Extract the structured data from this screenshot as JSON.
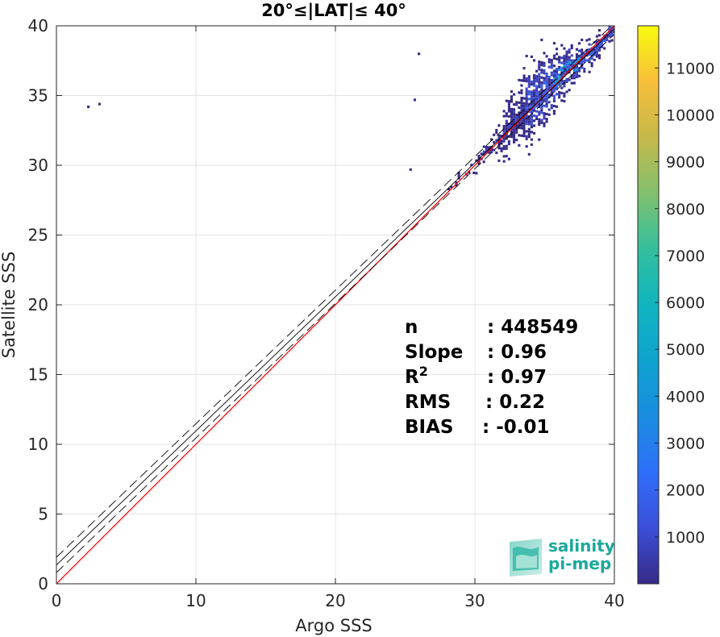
{
  "chart_data": {
    "type": "heatmap",
    "title": "20°≤|LAT|≤ 40°",
    "xlabel": "Argo SSS",
    "ylabel": "Satellite SSS",
    "xlim": [
      0,
      40
    ],
    "ylim": [
      0,
      40
    ],
    "xticks": [
      0,
      10,
      20,
      30,
      40
    ],
    "yticks": [
      0,
      5,
      10,
      15,
      20,
      25,
      30,
      35,
      40
    ],
    "grid": true,
    "colorbar": {
      "range": [
        0,
        11900
      ],
      "ticks": [
        1000,
        2000,
        3000,
        4000,
        5000,
        6000,
        7000,
        8000,
        9000,
        10000,
        11000
      ],
      "colormap": "parula"
    },
    "density_description_points": [
      {
        "x": 25.9,
        "y": 37.9
      },
      {
        "x": 2.2,
        "y": 34.1
      },
      {
        "x": 3.0,
        "y": 34.3
      },
      {
        "x": 25.6,
        "y": 34.6
      },
      {
        "x": 25.3,
        "y": 29.6
      }
    ],
    "lines": [
      {
        "name": "1:1",
        "color": "#ff0000",
        "style": "solid",
        "x": [
          0,
          40
        ],
        "y": [
          0,
          40
        ]
      },
      {
        "name": "fit",
        "color": "#000000",
        "style": "solid",
        "x": [
          0,
          40
        ],
        "y": [
          1.35,
          39.8
        ]
      },
      {
        "name": "fit+",
        "color": "#000000",
        "style": "dashed",
        "x": [
          0,
          40
        ],
        "y": [
          1.9,
          40.2
        ]
      },
      {
        "name": "fit-",
        "color": "#000000",
        "style": "dashed",
        "x": [
          0,
          40
        ],
        "y": [
          0.8,
          39.4
        ]
      }
    ],
    "stats": [
      {
        "label": "n",
        "value": ": 448549"
      },
      {
        "label": "Slope",
        "value": ": 0.96"
      },
      {
        "label": "R",
        "sup": "2",
        "value": ": 0.97"
      },
      {
        "label": "RMS",
        "value": ": 0.22"
      },
      {
        "label": "BIAS",
        "value": ": -0.01"
      }
    ]
  },
  "logo": {
    "line1": "salinity",
    "line2": "pi-mep",
    "color": "#1aa99a"
  }
}
